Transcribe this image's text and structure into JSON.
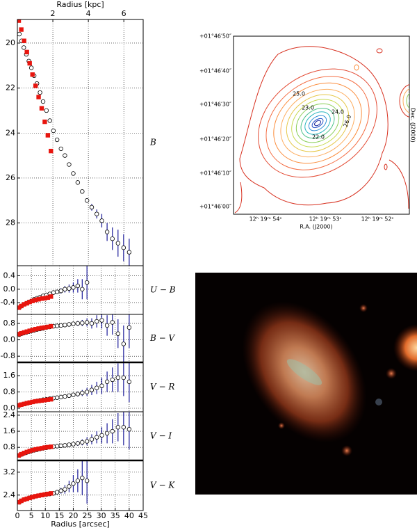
{
  "chart_data": [
    {
      "type": "scatter",
      "label": "B",
      "x2label": "Radius [kpc]",
      "x2lim": [
        0,
        7.09
      ],
      "x2ticks": [
        2,
        4,
        6
      ],
      "xlim": [
        0,
        45
      ],
      "ylim": [
        18.95,
        29.9
      ],
      "inverted": true,
      "yticks": [
        20,
        22,
        24,
        26,
        28
      ],
      "grid": true,
      "series": [
        {
          "marker": "circle",
          "color": "#000000",
          "error_color": "#1c1c9a",
          "x": [
            0.7,
            1.5,
            2.3,
            3.2,
            4.1,
            5.0,
            6.0,
            7.0,
            8.1,
            9.2,
            10.4,
            11.6,
            12.9,
            14.2,
            15.6,
            17.0,
            18.5,
            20.0,
            21.6,
            23.2,
            24.9,
            26.6,
            28.4,
            30.2,
            32.1,
            34.0,
            36.0,
            38.0,
            40.0
          ],
          "values": [
            19.6,
            19.9,
            20.2,
            20.5,
            20.8,
            21.1,
            21.45,
            21.8,
            22.2,
            22.6,
            23.0,
            23.45,
            23.9,
            24.3,
            24.7,
            25.0,
            25.4,
            25.8,
            26.2,
            26.6,
            27.0,
            27.3,
            27.6,
            27.9,
            28.4,
            28.7,
            28.9,
            29.1,
            29.3
          ],
          "errors": [
            0.02,
            0.02,
            0.02,
            0.02,
            0.02,
            0.02,
            0.02,
            0.02,
            0.02,
            0.02,
            0.02,
            0.02,
            0.02,
            0.02,
            0.02,
            0.02,
            0.02,
            0.02,
            0.05,
            0.07,
            0.1,
            0.15,
            0.2,
            0.3,
            0.4,
            0.5,
            0.6,
            0.6,
            0.6
          ]
        },
        {
          "marker": "square",
          "color": "#e8150e",
          "x": [
            0.5,
            1.4,
            2.4,
            3.4,
            4.4,
            5.4,
            6.5,
            7.6,
            8.7,
            9.8,
            10.9,
            12.0
          ],
          "values": [
            19.0,
            19.4,
            19.9,
            20.4,
            20.9,
            21.4,
            21.9,
            22.4,
            22.9,
            23.5,
            24.1,
            24.8
          ]
        }
      ]
    },
    {
      "type": "scatter",
      "label": "U − B",
      "xlim": [
        0,
        45
      ],
      "ylim": [
        -0.75,
        0.7
      ],
      "yticks": [
        0.4,
        {
          "value": 0,
          "label": "0.0"
        },
        -0.4
      ],
      "grid": true,
      "series": [
        {
          "marker": "circle",
          "color": "#000000",
          "error_color": "#1c1c9a",
          "x": [
            0.7,
            1.5,
            2.3,
            3.2,
            4.1,
            5.0,
            6.0,
            7.0,
            8.1,
            9.2,
            10.4,
            11.6,
            12.9,
            14.2,
            15.6,
            17.0,
            18.5,
            20.0,
            21.6,
            23.2,
            24.9
          ],
          "values": [
            -0.55,
            -0.5,
            -0.45,
            -0.42,
            -0.38,
            -0.35,
            -0.3,
            -0.27,
            -0.24,
            -0.2,
            -0.17,
            -0.14,
            -0.1,
            -0.08,
            -0.05,
            0.0,
            0.02,
            0.05,
            0.1,
            0.0,
            0.2
          ],
          "errors": [
            0.02,
            0.02,
            0.02,
            0.02,
            0.02,
            0.03,
            0.03,
            0.03,
            0.03,
            0.04,
            0.04,
            0.05,
            0.05,
            0.06,
            0.08,
            0.1,
            0.12,
            0.15,
            0.2,
            0.3,
            0.5
          ]
        },
        {
          "marker": "square",
          "color": "#e8150e",
          "x": [
            0.5,
            1.4,
            2.4,
            3.4,
            4.4,
            5.4,
            6.5,
            7.6,
            8.7,
            9.8,
            10.9,
            12.0
          ],
          "values": [
            -0.55,
            -0.5,
            -0.45,
            -0.42,
            -0.38,
            -0.35,
            -0.32,
            -0.3,
            -0.28,
            -0.27,
            -0.25,
            -0.22
          ]
        }
      ]
    },
    {
      "type": "scatter",
      "label": "B − V",
      "xlim": [
        0,
        45
      ],
      "ylim": [
        -1.1,
        1.24
      ],
      "yticks": [
        0.8,
        {
          "value": 0,
          "label": "0.0"
        },
        -0.8
      ],
      "grid": true,
      "series": [
        {
          "marker": "circle",
          "color": "#000000",
          "error_color": "#1c1c9a",
          "x": [
            0.7,
            1.5,
            2.3,
            3.2,
            4.1,
            5.0,
            6.0,
            7.0,
            8.1,
            9.2,
            10.4,
            11.6,
            12.9,
            14.2,
            15.6,
            17.0,
            18.5,
            20.0,
            21.6,
            23.2,
            24.9,
            26.6,
            28.4,
            30.2,
            32.1,
            34.0,
            36.0,
            38.0,
            40.0
          ],
          "values": [
            0.25,
            0.3,
            0.33,
            0.36,
            0.4,
            0.43,
            0.46,
            0.5,
            0.53,
            0.56,
            0.6,
            0.63,
            0.66,
            0.68,
            0.7,
            0.72,
            0.75,
            0.78,
            0.8,
            0.82,
            0.85,
            0.8,
            0.9,
            0.95,
            0.7,
            0.85,
            0.3,
            -0.2,
            0.6
          ],
          "errors": [
            0.02,
            0.02,
            0.02,
            0.02,
            0.02,
            0.02,
            0.02,
            0.02,
            0.02,
            0.02,
            0.03,
            0.03,
            0.04,
            0.04,
            0.05,
            0.06,
            0.08,
            0.1,
            0.12,
            0.15,
            0.2,
            0.25,
            0.3,
            0.4,
            0.5,
            0.6,
            0.7,
            0.9,
            1.0
          ]
        },
        {
          "marker": "square",
          "color": "#e8150e",
          "x": [
            0.5,
            1.4,
            2.4,
            3.4,
            4.4,
            5.4,
            6.5,
            7.6,
            8.7,
            9.8,
            10.9,
            12.0
          ],
          "values": [
            0.28,
            0.32,
            0.36,
            0.4,
            0.44,
            0.48,
            0.52,
            0.55,
            0.58,
            0.6,
            0.63,
            0.66
          ]
        }
      ]
    },
    {
      "type": "scatter",
      "label": "V − R",
      "xlim": [
        0,
        45
      ],
      "ylim": [
        -0.17,
        2.25
      ],
      "yticks": [
        1.6,
        0.8,
        {
          "value": 0,
          "label": "0.0"
        }
      ],
      "grid": true,
      "series": [
        {
          "marker": "circle",
          "color": "#000000",
          "error_color": "#1c1c9a",
          "x": [
            0.7,
            1.5,
            2.3,
            3.2,
            4.1,
            5.0,
            6.0,
            7.0,
            8.1,
            9.2,
            10.4,
            11.6,
            12.9,
            14.2,
            15.6,
            17.0,
            18.5,
            20.0,
            21.6,
            23.2,
            24.9,
            26.6,
            28.4,
            30.2,
            32.1,
            34.0,
            36.0,
            38.0,
            40.0
          ],
          "values": [
            0.15,
            0.18,
            0.21,
            0.24,
            0.27,
            0.3,
            0.33,
            0.36,
            0.39,
            0.42,
            0.44,
            0.47,
            0.5,
            0.52,
            0.55,
            0.58,
            0.62,
            0.66,
            0.7,
            0.75,
            0.8,
            0.9,
            1.0,
            1.1,
            1.3,
            1.4,
            1.5,
            1.5,
            1.3
          ],
          "errors": [
            0.02,
            0.02,
            0.02,
            0.02,
            0.02,
            0.02,
            0.02,
            0.02,
            0.02,
            0.02,
            0.03,
            0.03,
            0.04,
            0.04,
            0.05,
            0.06,
            0.08,
            0.1,
            0.12,
            0.15,
            0.2,
            0.25,
            0.3,
            0.4,
            0.5,
            0.6,
            0.7,
            0.9,
            1.0
          ]
        },
        {
          "marker": "square",
          "color": "#e8150e",
          "x": [
            0.5,
            1.4,
            2.4,
            3.4,
            4.4,
            5.4,
            6.5,
            7.6,
            8.7,
            9.8,
            10.9,
            12.0
          ],
          "values": [
            0.15,
            0.18,
            0.21,
            0.25,
            0.28,
            0.31,
            0.34,
            0.36,
            0.38,
            0.4,
            0.42,
            0.44
          ]
        }
      ]
    },
    {
      "type": "scatter",
      "label": "V − I",
      "xlim": [
        0,
        45
      ],
      "ylim": [
        0.15,
        2.57
      ],
      "yticks": [
        2.4,
        1.6,
        0.8
      ],
      "grid": true,
      "series": [
        {
          "marker": "circle",
          "color": "#000000",
          "error_color": "#1c1c9a",
          "x": [
            0.7,
            1.5,
            2.3,
            3.2,
            4.1,
            5.0,
            6.0,
            7.0,
            8.1,
            9.2,
            10.4,
            11.6,
            12.9,
            14.2,
            15.6,
            17.0,
            18.5,
            20.0,
            21.6,
            23.2,
            24.9,
            26.6,
            28.4,
            30.2,
            32.1,
            34.0,
            36.0,
            38.0,
            40.0
          ],
          "values": [
            0.4,
            0.45,
            0.5,
            0.54,
            0.58,
            0.62,
            0.65,
            0.68,
            0.72,
            0.75,
            0.78,
            0.81,
            0.84,
            0.86,
            0.88,
            0.9,
            0.93,
            0.96,
            1.0,
            1.05,
            1.1,
            1.2,
            1.3,
            1.4,
            1.5,
            1.6,
            1.8,
            1.8,
            1.7
          ],
          "errors": [
            0.02,
            0.02,
            0.02,
            0.02,
            0.02,
            0.02,
            0.02,
            0.02,
            0.02,
            0.02,
            0.03,
            0.03,
            0.04,
            0.04,
            0.05,
            0.06,
            0.08,
            0.1,
            0.12,
            0.15,
            0.2,
            0.25,
            0.3,
            0.4,
            0.5,
            0.6,
            0.7,
            0.9,
            1.0
          ]
        },
        {
          "marker": "square",
          "color": "#e8150e",
          "x": [
            0.5,
            1.4,
            2.4,
            3.4,
            4.4,
            5.4,
            6.5,
            7.6,
            8.7,
            9.8,
            10.9,
            12.0
          ],
          "values": [
            0.4,
            0.46,
            0.52,
            0.57,
            0.62,
            0.66,
            0.7,
            0.73,
            0.76,
            0.79,
            0.81,
            0.83
          ]
        }
      ]
    },
    {
      "type": "scatter",
      "label": "V − K",
      "xlabel": "Radius [arcsec]",
      "xlim": [
        0,
        45
      ],
      "xticks": [
        0,
        5,
        10,
        15,
        20,
        25,
        30,
        35,
        40,
        45
      ],
      "ylim": [
        1.86,
        3.61
      ],
      "yticks": [
        3.2,
        2.4
      ],
      "grid": true,
      "series": [
        {
          "marker": "circle",
          "color": "#000000",
          "error_color": "#1c1c9a",
          "x": [
            0.7,
            1.5,
            2.3,
            3.2,
            4.1,
            5.0,
            6.0,
            7.0,
            8.1,
            9.2,
            10.4,
            11.6,
            12.9,
            14.2,
            15.6,
            17.0,
            18.5,
            20.0,
            21.6,
            23.2,
            24.9
          ],
          "values": [
            2.15,
            2.2,
            2.24,
            2.27,
            2.3,
            2.33,
            2.35,
            2.37,
            2.39,
            2.4,
            2.42,
            2.44,
            2.46,
            2.5,
            2.55,
            2.6,
            2.7,
            2.8,
            2.9,
            3.0,
            2.9
          ],
          "errors": [
            0.02,
            0.02,
            0.02,
            0.02,
            0.02,
            0.02,
            0.02,
            0.02,
            0.03,
            0.03,
            0.04,
            0.05,
            0.06,
            0.08,
            0.1,
            0.15,
            0.2,
            0.3,
            0.4,
            0.6,
            0.8
          ]
        },
        {
          "marker": "square",
          "color": "#e8150e",
          "x": [
            0.5,
            1.4,
            2.4,
            3.4,
            4.4,
            5.4,
            6.5,
            7.6,
            8.7,
            9.8,
            10.9,
            12.0
          ],
          "values": [
            2.15,
            2.2,
            2.24,
            2.27,
            2.3,
            2.33,
            2.36,
            2.38,
            2.4,
            2.42,
            2.44,
            2.46
          ]
        }
      ]
    }
  ],
  "map": {
    "dec_labels": [
      "+01°46′50″",
      "+01°46′40″",
      "+01°46′30″",
      "+01°46′20″",
      "+01°46′10″",
      "+01°46′00″"
    ],
    "ra_labels": [
      "12ʰ 19ᵐ 54ˢ",
      "12ʰ 19ᵐ 53ˢ",
      "12ʰ 19ᵐ 52ˢ"
    ],
    "xlabel": "R.A. (J2000)",
    "ylabel": "Dec. (J2000)",
    "contour_labels": [
      "25.0",
      "23.0",
      "24.0",
      "22.0",
      "26.0"
    ]
  }
}
